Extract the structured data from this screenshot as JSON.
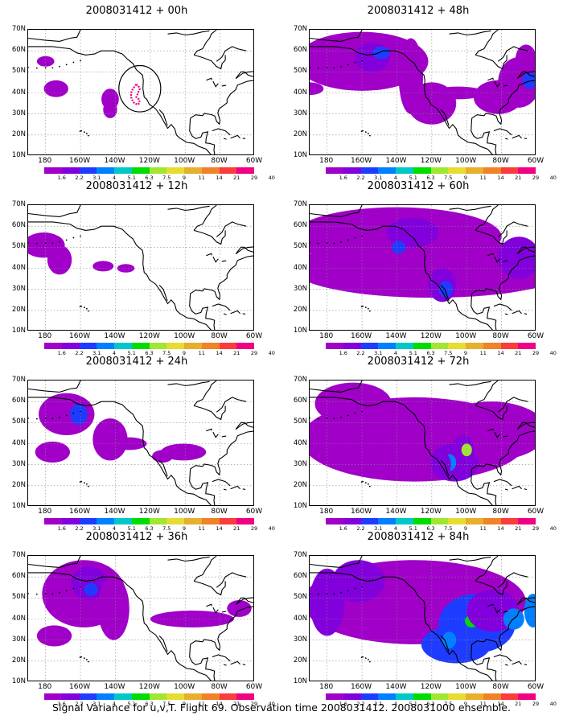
{
  "panels": [
    {
      "title": "2008031412 + 00h",
      "col": 0,
      "row": 0
    },
    {
      "title": "2008031412 + 12h",
      "col": 0,
      "row": 1
    },
    {
      "title": "2008031412 + 24h",
      "col": 0,
      "row": 2
    },
    {
      "title": "2008031412 + 36h",
      "col": 0,
      "row": 3
    },
    {
      "title": "2008031412 + 48h",
      "col": 1,
      "row": 0
    },
    {
      "title": "2008031412 + 60h",
      "col": 1,
      "row": 1
    },
    {
      "title": "2008031412 + 72h",
      "col": 1,
      "row": 2
    },
    {
      "title": "2008031412 + 84h",
      "col": 1,
      "row": 3
    }
  ],
  "lat_labels": [
    "70N",
    "60N",
    "50N",
    "40N",
    "30N",
    "20N",
    "10N"
  ],
  "lon_labels": [
    "180",
    "160W",
    "140W",
    "120W",
    "100W",
    "80W",
    "60W"
  ],
  "colorbar": {
    "labels": [
      "1.6",
      "2.2",
      "3.1",
      "4",
      "5.1",
      "6.3",
      "7.5",
      "9",
      "11",
      "14",
      "21",
      "29",
      "40"
    ],
    "colors": [
      "#a000c8",
      "#8200dc",
      "#1e3cff",
      "#0080ff",
      "#00c8c8",
      "#00dc00",
      "#a0e632",
      "#e6dc32",
      "#e6af2d",
      "#f08228",
      "#fa3c3c",
      "#f00082"
    ]
  },
  "footer": "Signal Variance for u,v,T. Flight 69. Observation time 2008031412. 2008031000 ensemble."
}
